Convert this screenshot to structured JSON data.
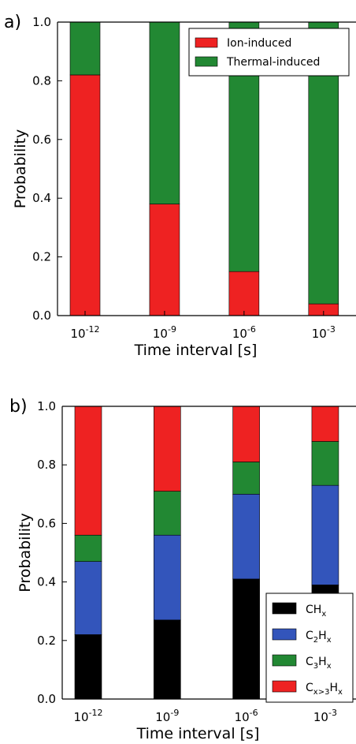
{
  "chart_data": [
    {
      "panel": "a)",
      "type": "bar",
      "stacked": true,
      "xlabel": "Time interval [s]",
      "ylabel": "Probability",
      "ylim": [
        0,
        1.0
      ],
      "yticks": [
        "0.0",
        "0.2",
        "0.4",
        "0.6",
        "0.8",
        "1.0"
      ],
      "categories": [
        {
          "base": "10",
          "exp": "-12"
        },
        {
          "base": "10",
          "exp": "-9"
        },
        {
          "base": "10",
          "exp": "-6"
        },
        {
          "base": "10",
          "exp": "-3"
        }
      ],
      "series": [
        {
          "name": "Ion-induced",
          "color": "#ee2222",
          "values": [
            0.82,
            0.38,
            0.15,
            0.04
          ]
        },
        {
          "name": "Thermal-induced",
          "color": "#228833",
          "values": [
            0.18,
            0.62,
            0.85,
            0.96
          ]
        }
      ],
      "legend_position": "top-right",
      "grid": false
    },
    {
      "panel": "b)",
      "type": "bar",
      "stacked": true,
      "xlabel": "Time interval [s]",
      "ylabel": "Probability",
      "ylim": [
        0,
        1.0
      ],
      "yticks": [
        "0.0",
        "0.2",
        "0.4",
        "0.6",
        "0.8",
        "1.0"
      ],
      "categories": [
        {
          "base": "10",
          "exp": "-12"
        },
        {
          "base": "10",
          "exp": "-9"
        },
        {
          "base": "10",
          "exp": "-6"
        },
        {
          "base": "10",
          "exp": "-3"
        }
      ],
      "series": [
        {
          "name": "CH",
          "sub": "x",
          "sub_mid": "",
          "sub2": "",
          "color": "#000000",
          "values": [
            0.22,
            0.27,
            0.41,
            0.39
          ]
        },
        {
          "name": "C",
          "sub": "2",
          "sub_mid": "H",
          "sub2": "x",
          "color": "#3355bb",
          "values": [
            0.25,
            0.29,
            0.29,
            0.34
          ]
        },
        {
          "name": "C",
          "sub": "3",
          "sub_mid": "H",
          "sub2": "x",
          "color": "#228833",
          "values": [
            0.09,
            0.15,
            0.11,
            0.15
          ]
        },
        {
          "name": "C",
          "sub": "x>3",
          "sub_mid": "H",
          "sub2": "x",
          "color": "#ee2222",
          "values": [
            0.44,
            0.29,
            0.19,
            0.12
          ]
        }
      ],
      "legend_position": "bottom-right",
      "grid": false
    }
  ]
}
